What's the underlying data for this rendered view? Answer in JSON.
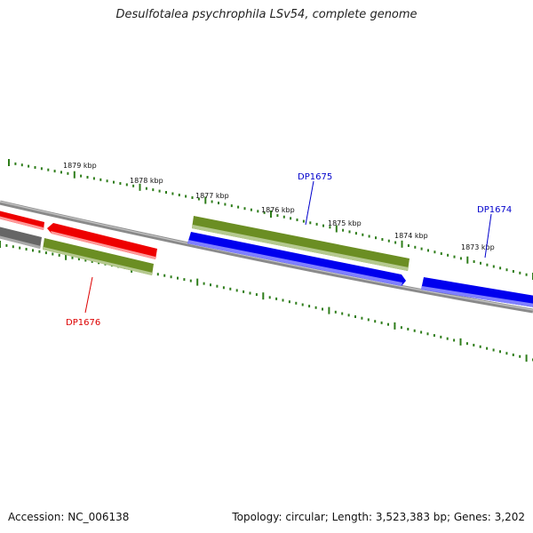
{
  "title": "Desulfotalea psychrophila LSv54, complete genome",
  "footer": {
    "accession": "Accession: NC_006138",
    "summary": "Topology: circular; Length: 3,523,383 bp; Genes: 3,202"
  },
  "colors": {
    "backbone": "#777777",
    "tick": "#2e7d1a",
    "forward_cds": "#6b8e23",
    "reverse_cds": "#0000ee",
    "highlight_cds": "#ee0000",
    "other_cds": "#666666"
  },
  "scale_labels": [
    "1879 kbp",
    "1878 kbp",
    "1877 kbp",
    "1876 kbp",
    "1875 kbp",
    "1874 kbp",
    "1873 kbp"
  ],
  "gene_labels": [
    {
      "text": "DP1676",
      "color": "#dd0000"
    },
    {
      "text": "DP1675",
      "color": "#0000cc"
    },
    {
      "text": "DP1674",
      "color": "#0000cc"
    }
  ]
}
